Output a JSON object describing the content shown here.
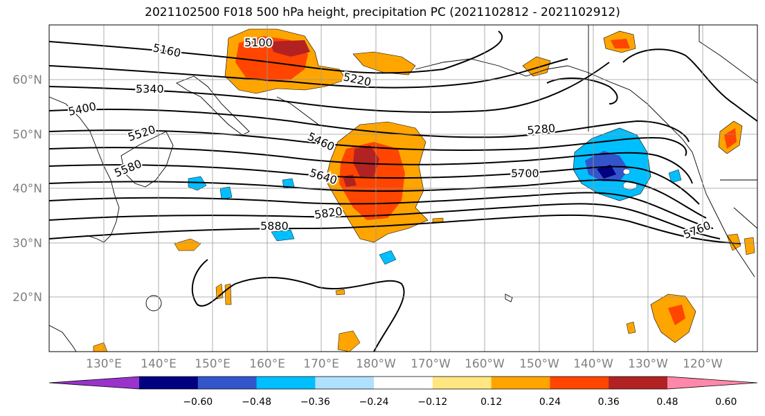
{
  "title": "2021102500 F018 500 hPa height, precipitation PC (2021102812 - 2021102912)",
  "lat_labels": [
    "60°N",
    "50°N",
    "40°N",
    "30°N",
    "20°N"
  ],
  "lon_labels": [
    "130°E",
    "140°E",
    "150°E",
    "160°E",
    "170°E",
    "180°W",
    "170°W",
    "160°W",
    "150°W",
    "140°W",
    "130°W",
    "120°W"
  ],
  "contour_labels": [
    "5100",
    "5160",
    "5220",
    "5340",
    "5400",
    "5520",
    "5580",
    "5460",
    "5640",
    "5820",
    "5880",
    "5280",
    "5700",
    "5760"
  ],
  "colorbar": {
    "colors": [
      "#9933cc",
      "#000080",
      "#3355cc",
      "#00bfff",
      "#b0e0ff",
      "#ffffff",
      "#ffe680",
      "#ffa500",
      "#ff4500",
      "#b22222",
      "#ff88aa"
    ],
    "ticks": [
      "−0.60",
      "−0.48",
      "−0.36",
      "−0.24",
      "−0.12",
      "0.12",
      "0.24",
      "0.36",
      "0.48",
      "0.60"
    ]
  }
}
